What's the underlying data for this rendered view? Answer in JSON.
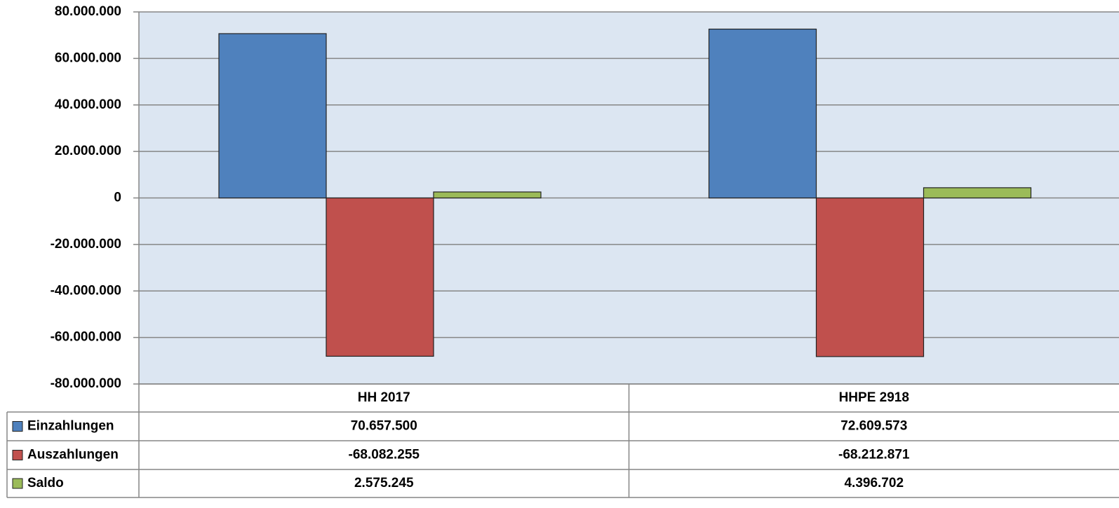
{
  "chart_data": {
    "type": "bar",
    "categories": [
      "HH 2017",
      "HHPE 2918"
    ],
    "series": [
      {
        "name": "Einzahlungen",
        "color": "#4f81bd",
        "values": [
          70657500,
          72609573
        ],
        "value_labels": [
          "70.657.500",
          "72.609.573"
        ]
      },
      {
        "name": "Auszahlungen",
        "color": "#c0504d",
        "values": [
          -68082255,
          -68212871
        ],
        "value_labels": [
          "-68.082.255",
          "-68.212.871"
        ]
      },
      {
        "name": "Saldo",
        "color": "#9bbb59",
        "values": [
          2575245,
          4396702
        ],
        "value_labels": [
          "2.575.245",
          "4.396.702"
        ]
      }
    ],
    "ylim": [
      -80000000,
      80000000
    ],
    "yticks": [
      {
        "value": -80000000,
        "label": "-80.000.000"
      },
      {
        "value": -60000000,
        "label": "-60.000.000"
      },
      {
        "value": -40000000,
        "label": "-40.000.000"
      },
      {
        "value": -20000000,
        "label": "-20.000.000"
      },
      0,
      {
        "value": 20000000,
        "label": "20.000.000"
      },
      {
        "value": 40000000,
        "label": "40.000.000"
      },
      {
        "value": 60000000,
        "label": "60.000.000"
      },
      {
        "value": 80000000,
        "label": "80.000.000"
      }
    ],
    "grid": true
  }
}
